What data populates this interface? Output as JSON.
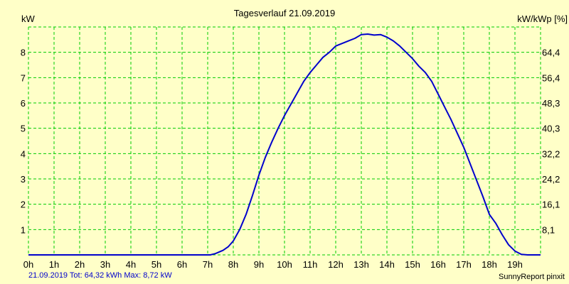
{
  "chart_data": {
    "type": "line",
    "title": "Tagesverlauf 21.09.2019",
    "ylabel_left": "kW",
    "ylabel_right": "kW/kWp [%]",
    "x_ticks": [
      "0h",
      "1h",
      "2h",
      "3h",
      "4h",
      "5h",
      "6h",
      "7h",
      "8h",
      "9h",
      "10h",
      "11h",
      "12h",
      "13h",
      "14h",
      "15h",
      "16h",
      "17h",
      "18h",
      "19h"
    ],
    "y_ticks_left": [
      "1",
      "2",
      "3",
      "4",
      "5",
      "6",
      "7",
      "8"
    ],
    "y_ticks_right": [
      "8,1",
      "16,1",
      "24,2",
      "32,2",
      "40,3",
      "48,3",
      "56,4",
      "64,4"
    ],
    "xlim": [
      0,
      20
    ],
    "ylim": [
      0,
      9
    ],
    "grid": true,
    "colors": {
      "background": "#ffffc8",
      "grid": "#00cc00",
      "line": "#0000cc"
    },
    "series": [
      {
        "x": [
          0,
          7.1,
          7.3,
          7.6,
          7.8,
          8.0,
          8.25,
          8.5,
          8.75,
          9.0,
          9.25,
          9.5,
          9.75,
          10.0,
          10.25,
          10.5,
          10.75,
          11.0,
          11.25,
          11.5,
          11.75,
          12.0,
          12.25,
          12.5,
          12.75,
          13.0,
          13.25,
          13.5,
          13.75,
          14.0,
          14.25,
          14.5,
          14.75,
          15.0,
          15.25,
          15.5,
          15.75,
          16.0,
          16.25,
          16.5,
          16.75,
          17.0,
          17.25,
          17.5,
          17.75,
          18.0,
          18.25,
          18.5,
          18.75,
          19.0,
          19.25,
          19.5,
          20.0
        ],
        "y": [
          0,
          0,
          0.05,
          0.18,
          0.32,
          0.55,
          1.0,
          1.6,
          2.35,
          3.15,
          3.85,
          4.45,
          5.0,
          5.5,
          5.95,
          6.4,
          6.85,
          7.2,
          7.5,
          7.8,
          8.0,
          8.25,
          8.35,
          8.45,
          8.55,
          8.7,
          8.72,
          8.68,
          8.7,
          8.6,
          8.45,
          8.25,
          8.0,
          7.75,
          7.45,
          7.2,
          6.85,
          6.35,
          5.85,
          5.35,
          4.8,
          4.25,
          3.6,
          2.95,
          2.3,
          1.6,
          1.25,
          0.8,
          0.4,
          0.15,
          0.02,
          0,
          0
        ]
      }
    ]
  },
  "footer": {
    "summary": "21.09.2019 Tot: 64,32 kWh Max: 8,72 kW",
    "credit": "SunnyReport pinxit"
  }
}
